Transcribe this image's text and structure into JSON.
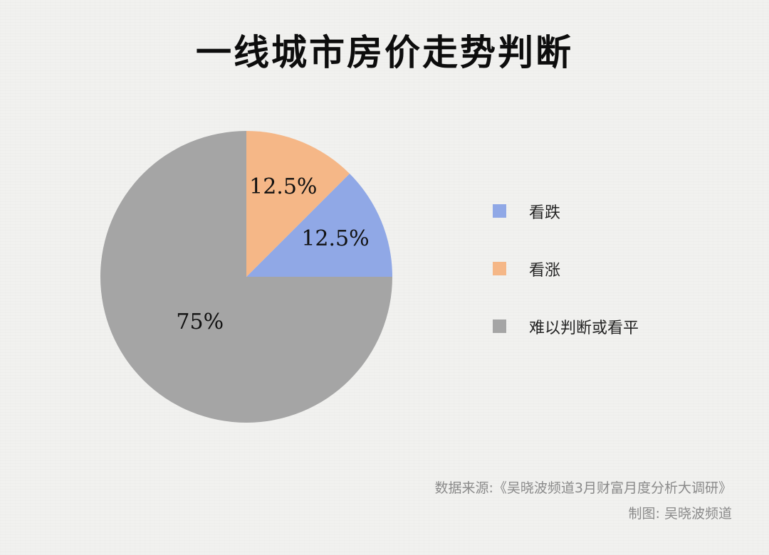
{
  "title": "一线城市房价走势判断",
  "chart_data": {
    "type": "pie",
    "title": "一线城市房价走势判断",
    "start_angle_deg": 0,
    "direction": "counterclockwise",
    "slices": [
      {
        "label": "难以判断或看平",
        "value": 75,
        "display": "75%",
        "color": "#a5a5a5"
      },
      {
        "label": "看跌",
        "value": 12.5,
        "display": "12.5%",
        "color": "#90a8e6"
      },
      {
        "label": "看涨",
        "value": 12.5,
        "display": "12.5%",
        "color": "#f5b787"
      }
    ],
    "legend": [
      {
        "label": "看跌",
        "color": "#90a8e6"
      },
      {
        "label": "看涨",
        "color": "#f5b787"
      },
      {
        "label": "难以判断或看平",
        "color": "#a5a5a5"
      }
    ],
    "legend_position": "right"
  },
  "source": {
    "line1": "数据来源:《吴晓波频道3月财富月度分析大调研》",
    "line2": "制图: 吴晓波频道"
  }
}
